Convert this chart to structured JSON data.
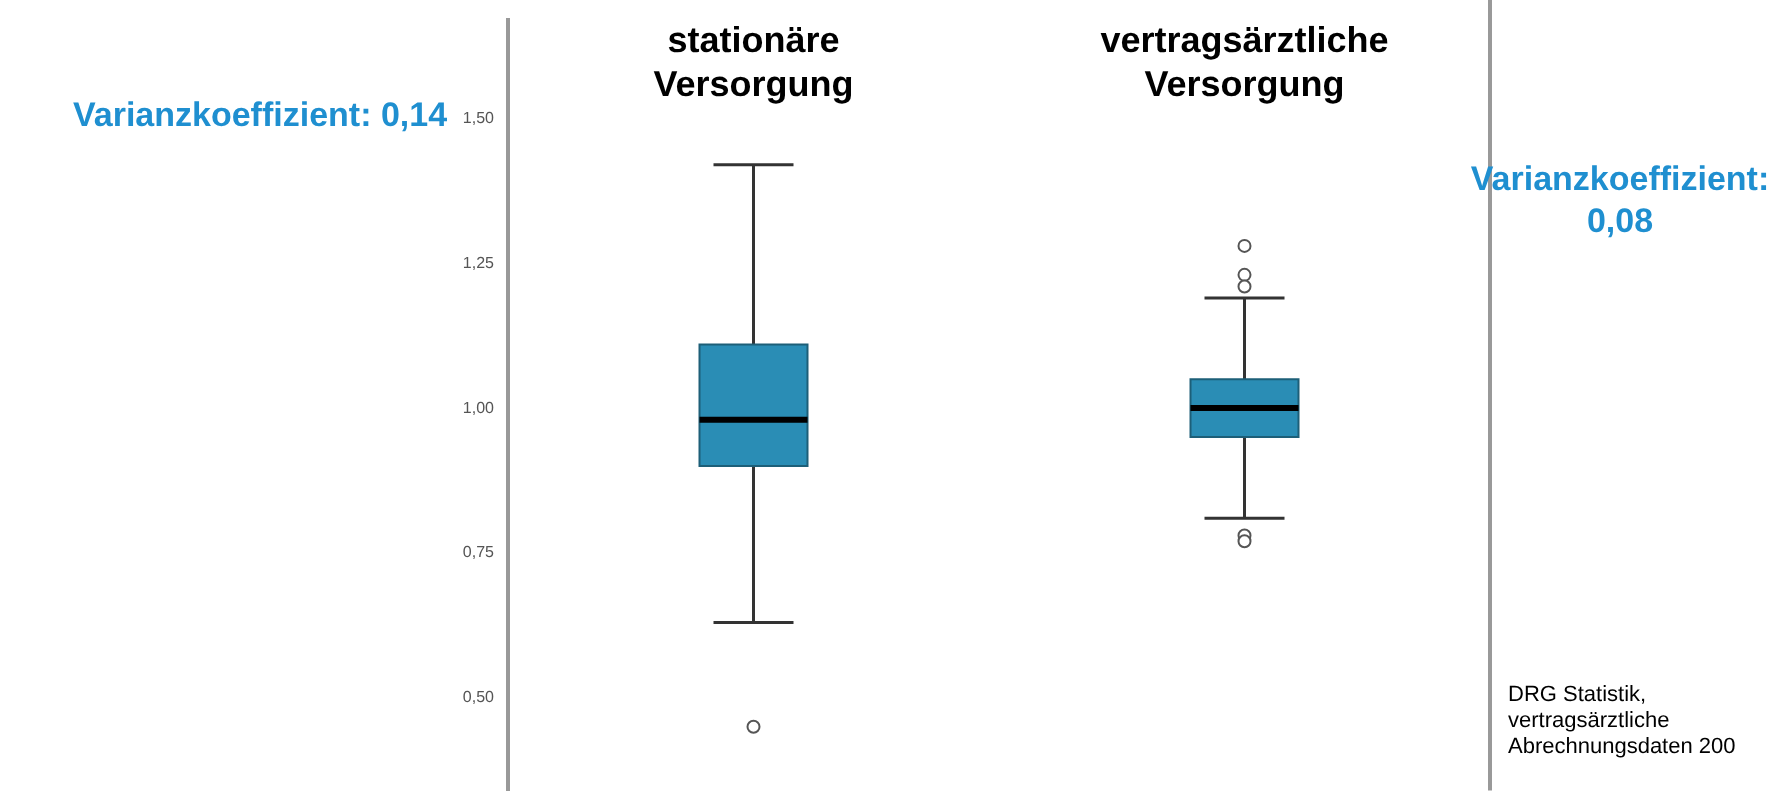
{
  "chart_data": {
    "type": "box",
    "categories": [
      "stationäre Versorgung",
      "vertragsärztliche Versorgung"
    ],
    "color": "#2a8db5",
    "boxes": [
      {
        "low": 0.63,
        "q1": 0.9,
        "median": 0.98,
        "q3": 1.11,
        "high": 1.42,
        "outliers": [
          0.45
        ]
      },
      {
        "low": 0.81,
        "q1": 0.95,
        "median": 1.0,
        "q3": 1.05,
        "high": 1.19,
        "outliers": [
          1.28,
          1.23,
          1.21,
          0.78,
          0.77
        ]
      }
    ],
    "ylim": [
      0.34,
      1.67
    ],
    "yticks": [
      {
        "value": 0.5,
        "label": "0,50"
      },
      {
        "value": 0.75,
        "label": "0,75"
      },
      {
        "value": 1.0,
        "label": "1,00"
      },
      {
        "value": 1.25,
        "label": "1,25"
      },
      {
        "value": 1.5,
        "label": "1,50"
      }
    ],
    "grid": false,
    "marker": "circle",
    "annotations": [
      "Varianzkoeffizient: 0,14",
      "Varianzkoeffizient: 0,08",
      "DRG Statistik, vertragsärztliche Abrechnungsdaten 200"
    ]
  }
}
